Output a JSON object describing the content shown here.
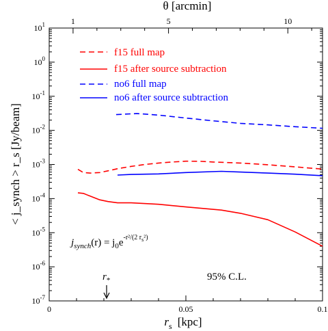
{
  "chart_data": {
    "type": "line",
    "y_scale": "log",
    "xlim": [
      0,
      0.1
    ],
    "ylim_exponents": [
      -7,
      1
    ],
    "x_ticks": [
      "0",
      "0.05",
      "0.1"
    ],
    "xlabel_main": "r",
    "xlabel_sub": "s",
    "xlabel_unit": "[kpc]",
    "ylabel": "< j_synch > r_s  [Jy/beam]",
    "top_axis": {
      "label": "θ [arcmin]",
      "ticks": [
        {
          "label": "1",
          "x": 0.00873
        },
        {
          "label": "5",
          "x": 0.04365
        },
        {
          "label": "10",
          "x": 0.0873
        }
      ]
    },
    "series": [
      {
        "name": "f15 full map",
        "color": "#ff0000",
        "dash": true,
        "x": [
          0.0105,
          0.0125,
          0.015,
          0.0185,
          0.0215,
          0.025,
          0.03,
          0.035,
          0.04,
          0.045,
          0.05,
          0.055,
          0.06,
          0.07,
          0.08,
          0.09,
          0.1
        ],
        "y": [
          0.00072,
          0.00058,
          0.00056,
          0.00058,
          0.00065,
          0.00075,
          0.00088,
          0.001,
          0.0011,
          0.00118,
          0.00125,
          0.00124,
          0.00118,
          0.0011,
          0.00098,
          0.00085,
          0.00073
        ]
      },
      {
        "name": "f15 after source subtraction",
        "color": "#ff0000",
        "dash": false,
        "x": [
          0.0105,
          0.0125,
          0.015,
          0.0185,
          0.0215,
          0.025,
          0.03,
          0.04,
          0.05,
          0.063,
          0.07,
          0.08,
          0.09,
          0.1
        ],
        "y": [
          0.000148,
          0.000142,
          0.000118,
          9.2e-05,
          8.2e-05,
          7.5e-05,
          7.5e-05,
          6.8e-05,
          5.7e-05,
          4.6e-05,
          3.7e-05,
          2.4e-05,
          1.05e-05,
          4e-06
        ]
      },
      {
        "name": "no6 full map",
        "color": "#0000ff",
        "dash": true,
        "x": [
          0.0245,
          0.028,
          0.032,
          0.035,
          0.04,
          0.05,
          0.06,
          0.07,
          0.08,
          0.09,
          0.1
        ],
        "y": [
          0.029,
          0.03,
          0.031,
          0.03,
          0.028,
          0.023,
          0.019,
          0.016,
          0.0145,
          0.0128,
          0.0115
        ]
      },
      {
        "name": "no6 after source subtraction",
        "color": "#0000ff",
        "dash": false,
        "x": [
          0.025,
          0.03,
          0.035,
          0.04,
          0.05,
          0.063,
          0.07,
          0.08,
          0.09,
          0.1
        ],
        "y": [
          0.00049,
          0.00051,
          0.00052,
          0.00053,
          0.00058,
          0.00063,
          0.0006,
          0.00056,
          0.00052,
          0.00047
        ]
      }
    ],
    "annotations": {
      "formula_lhs_main": "j",
      "formula_lhs_sub": "synch",
      "formula_rhs": "(r) = j",
      "formula_j0_sub": "0",
      "formula_e": "e",
      "formula_exp": "-r²/(2 r",
      "formula_exp_sub": "s",
      "formula_exp_tail": "²)",
      "confidence": "95% C.L.",
      "marker_label_main": "r",
      "marker_label_sub": "*",
      "marker_x": 0.021
    }
  }
}
